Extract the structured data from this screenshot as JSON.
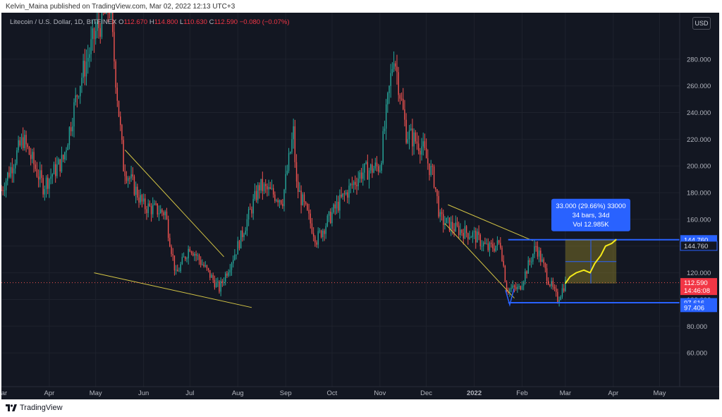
{
  "publisher_line": "Kelvin_Maina published on TradingView.com, Mar 02, 2022 12:13 UTC+3",
  "legend": {
    "symbol": "Litecoin / U.S. Dollar, 1D, BITFINEX",
    "open_label": "O",
    "open": "112.670",
    "high_label": "H",
    "high": "114.800",
    "low_label": "L",
    "low": "110.630",
    "close_label": "C",
    "close": "112.590",
    "change": "−0.080 (−0.07%)"
  },
  "currency_button": "USD",
  "footer_brand": "TradingView",
  "colors": {
    "background": "#131722",
    "up": "#26a69a",
    "down": "#ef5350",
    "trendline": "#d4c545",
    "level": "#2962ff",
    "projection": "#f5eb1a"
  },
  "chart_data": {
    "type": "candlestick",
    "title": "Litecoin / U.S. Dollar, 1D, BITFINEX",
    "xlabel": "",
    "ylabel": "",
    "ylim": [
      40,
      300
    ],
    "x_ticks": [
      "Mar",
      "Apr",
      "May",
      "Jun",
      "Jul",
      "Aug",
      "Sep",
      "Oct",
      "Nov",
      "Dec",
      "2022",
      "Feb",
      "Mar",
      "Apr",
      "May"
    ],
    "y_ticks": [
      "280.000",
      "260.000",
      "240.000",
      "220.000",
      "200.000",
      "180.000",
      "160.000",
      "140.000",
      "120.000",
      "100.000",
      "80.000",
      "60.000"
    ],
    "y_tick_values": [
      280,
      260,
      240,
      220,
      200,
      180,
      160,
      140,
      120,
      100,
      80,
      60
    ],
    "price_series": [
      {
        "date": "2021-03-01",
        "value": 182
      },
      {
        "date": "2021-03-15",
        "value": 220
      },
      {
        "date": "2021-03-28",
        "value": 185
      },
      {
        "date": "2021-04-10",
        "value": 205
      },
      {
        "date": "2021-04-20",
        "value": 260
      },
      {
        "date": "2021-05-01",
        "value": 300
      },
      {
        "date": "2021-05-10",
        "value": 320
      },
      {
        "date": "2021-05-19",
        "value": 200
      },
      {
        "date": "2021-06-01",
        "value": 170
      },
      {
        "date": "2021-06-15",
        "value": 165
      },
      {
        "date": "2021-06-22",
        "value": 118
      },
      {
        "date": "2021-07-01",
        "value": 140
      },
      {
        "date": "2021-07-20",
        "value": 108
      },
      {
        "date": "2021-08-01",
        "value": 140
      },
      {
        "date": "2021-08-15",
        "value": 185
      },
      {
        "date": "2021-08-30",
        "value": 175
      },
      {
        "date": "2021-09-06",
        "value": 225
      },
      {
        "date": "2021-09-08",
        "value": 185
      },
      {
        "date": "2021-09-21",
        "value": 145
      },
      {
        "date": "2021-10-04",
        "value": 170
      },
      {
        "date": "2021-10-20",
        "value": 195
      },
      {
        "date": "2021-11-01",
        "value": 200
      },
      {
        "date": "2021-11-10",
        "value": 285
      },
      {
        "date": "2021-11-18",
        "value": 225
      },
      {
        "date": "2021-11-28",
        "value": 215
      },
      {
        "date": "2021-12-06",
        "value": 190
      },
      {
        "date": "2021-12-10",
        "value": 160
      },
      {
        "date": "2021-12-20",
        "value": 153
      },
      {
        "date": "2022-01-01",
        "value": 148
      },
      {
        "date": "2022-01-10",
        "value": 138
      },
      {
        "date": "2022-01-18",
        "value": 142
      },
      {
        "date": "2022-01-22",
        "value": 108
      },
      {
        "date": "2022-01-30",
        "value": 108
      },
      {
        "date": "2022-02-10",
        "value": 140
      },
      {
        "date": "2022-02-18",
        "value": 115
      },
      {
        "date": "2022-02-24",
        "value": 100
      },
      {
        "date": "2022-03-01",
        "value": 112.59
      }
    ],
    "levels": [
      {
        "value": 144.76,
        "label": "144.760"
      },
      {
        "value": 97.616,
        "label": "97.616"
      }
    ],
    "price_labels": [
      {
        "value": 144.76,
        "label": "144.760",
        "style": "blue"
      },
      {
        "value": 140.2,
        "label": "144.760",
        "style": "outline"
      },
      {
        "value": 112.59,
        "label": "112.590",
        "sublabel": "14:46:08",
        "style": "red"
      },
      {
        "value": 97.616,
        "label": "97.616",
        "style": "blue"
      },
      {
        "value": 94.0,
        "label": "97.406",
        "style": "blue"
      }
    ],
    "current_price": 112.59,
    "trendlines": [
      {
        "from": {
          "date": "2021-05-20",
          "value": 212
        },
        "to": {
          "date": "2021-07-23",
          "value": 132
        }
      },
      {
        "from": {
          "date": "2021-04-30",
          "value": 120
        },
        "to": {
          "date": "2021-08-10",
          "value": 94
        }
      },
      {
        "from": {
          "date": "2021-12-15",
          "value": 171
        },
        "to": {
          "date": "2022-02-08",
          "value": 144
        }
      },
      {
        "from": {
          "date": "2021-12-13",
          "value": 157
        },
        "to": {
          "date": "2022-01-27",
          "value": 101
        }
      }
    ],
    "measure": {
      "start_date": "2022-03-01",
      "end_date": "2022-04-03",
      "from_value": 112.0,
      "to_value": 144.76,
      "label_lines": [
        "33.000 (29.66%) 33000",
        "34 bars, 34d",
        "Vol 12.985K"
      ]
    },
    "projection": [
      {
        "date": "2022-03-01",
        "value": 112
      },
      {
        "date": "2022-03-04",
        "value": 117
      },
      {
        "date": "2022-03-08",
        "value": 120
      },
      {
        "date": "2022-03-13",
        "value": 122
      },
      {
        "date": "2022-03-17",
        "value": 120
      },
      {
        "date": "2022-03-20",
        "value": 127
      },
      {
        "date": "2022-03-24",
        "value": 133
      },
      {
        "date": "2022-03-27",
        "value": 140
      },
      {
        "date": "2022-03-31",
        "value": 142
      },
      {
        "date": "2022-04-03",
        "value": 145
      }
    ],
    "grid": true
  }
}
